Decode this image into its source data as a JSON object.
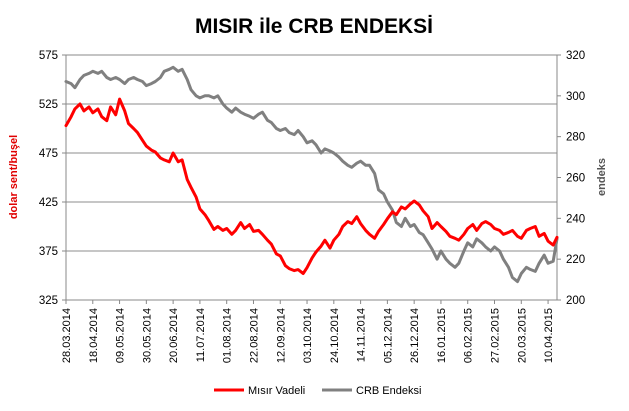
{
  "chart_data": {
    "type": "line",
    "title": "MISIR ile CRB ENDEKSİ",
    "ylabel_left": "dolar sent/buşel",
    "ylabel_right": "endeks",
    "ylim_left": [
      325,
      575
    ],
    "yticks_left": [
      "325",
      "375",
      "425",
      "475",
      "525",
      "575"
    ],
    "ylim_right": [
      200,
      320
    ],
    "yticks_right": [
      "200",
      "220",
      "240",
      "260",
      "280",
      "300",
      "320"
    ],
    "x_range": [
      "2014-03-28",
      "2015-04-17"
    ],
    "x_ticks": [
      "28.03.2014",
      "18.04.2014",
      "09.05.2014",
      "30.05.2014",
      "20.06.2014",
      "11.07.2014",
      "01.08.2014",
      "22.08.2014",
      "12.09.2014",
      "03.10.2014",
      "24.10.2014",
      "14.11.2014",
      "05.12.2014",
      "26.12.2014",
      "16.01.2015",
      "06.02.2015",
      "27.02.2015",
      "20.03.2015",
      "10.04.2015"
    ],
    "grid": "horizontal",
    "legend_position": "bottom",
    "series": [
      {
        "name": "Mısır Vadeli",
        "axis": "left",
        "color": "#ff0000",
        "points": [
          [
            "2014-03-28",
            503
          ],
          [
            "2014-04-01",
            512
          ],
          [
            "2014-04-04",
            520
          ],
          [
            "2014-04-08",
            525
          ],
          [
            "2014-04-11",
            518
          ],
          [
            "2014-04-15",
            522
          ],
          [
            "2014-04-18",
            516
          ],
          [
            "2014-04-22",
            520
          ],
          [
            "2014-04-25",
            512
          ],
          [
            "2014-04-29",
            508
          ],
          [
            "2014-05-02",
            522
          ],
          [
            "2014-05-06",
            514
          ],
          [
            "2014-05-09",
            530
          ],
          [
            "2014-05-13",
            518
          ],
          [
            "2014-05-16",
            505
          ],
          [
            "2014-05-20",
            500
          ],
          [
            "2014-05-23",
            496
          ],
          [
            "2014-05-27",
            488
          ],
          [
            "2014-05-30",
            482
          ],
          [
            "2014-06-03",
            478
          ],
          [
            "2014-06-06",
            476
          ],
          [
            "2014-06-10",
            470
          ],
          [
            "2014-06-13",
            468
          ],
          [
            "2014-06-17",
            466
          ],
          [
            "2014-06-20",
            475
          ],
          [
            "2014-06-24",
            466
          ],
          [
            "2014-06-27",
            468
          ],
          [
            "2014-07-01",
            448
          ],
          [
            "2014-07-04",
            440
          ],
          [
            "2014-07-08",
            430
          ],
          [
            "2014-07-11",
            418
          ],
          [
            "2014-07-15",
            412
          ],
          [
            "2014-07-18",
            406
          ],
          [
            "2014-07-22",
            397
          ],
          [
            "2014-07-25",
            400
          ],
          [
            "2014-07-29",
            396
          ],
          [
            "2014-08-01",
            398
          ],
          [
            "2014-08-05",
            392
          ],
          [
            "2014-08-08",
            396
          ],
          [
            "2014-08-12",
            404
          ],
          [
            "2014-08-15",
            398
          ],
          [
            "2014-08-19",
            402
          ],
          [
            "2014-08-22",
            395
          ],
          [
            "2014-08-26",
            396
          ],
          [
            "2014-08-29",
            392
          ],
          [
            "2014-09-02",
            386
          ],
          [
            "2014-09-05",
            382
          ],
          [
            "2014-09-09",
            372
          ],
          [
            "2014-09-12",
            370
          ],
          [
            "2014-09-16",
            360
          ],
          [
            "2014-09-19",
            357
          ],
          [
            "2014-09-23",
            355
          ],
          [
            "2014-09-26",
            356
          ],
          [
            "2014-09-30",
            352
          ],
          [
            "2014-10-03",
            358
          ],
          [
            "2014-10-07",
            368
          ],
          [
            "2014-10-10",
            374
          ],
          [
            "2014-10-14",
            380
          ],
          [
            "2014-10-17",
            386
          ],
          [
            "2014-10-21",
            378
          ],
          [
            "2014-10-24",
            386
          ],
          [
            "2014-10-28",
            392
          ],
          [
            "2014-10-31",
            400
          ],
          [
            "2014-11-04",
            405
          ],
          [
            "2014-11-07",
            403
          ],
          [
            "2014-11-11",
            410
          ],
          [
            "2014-11-14",
            403
          ],
          [
            "2014-11-18",
            396
          ],
          [
            "2014-11-21",
            392
          ],
          [
            "2014-11-25",
            388
          ],
          [
            "2014-11-28",
            395
          ],
          [
            "2014-12-02",
            402
          ],
          [
            "2014-12-05",
            408
          ],
          [
            "2014-12-09",
            415
          ],
          [
            "2014-12-12",
            412
          ],
          [
            "2014-12-16",
            420
          ],
          [
            "2014-12-19",
            418
          ],
          [
            "2014-12-23",
            423
          ],
          [
            "2014-12-26",
            426
          ],
          [
            "2014-12-30",
            422
          ],
          [
            "2015-01-02",
            416
          ],
          [
            "2015-01-06",
            410
          ],
          [
            "2015-01-09",
            398
          ],
          [
            "2015-01-13",
            404
          ],
          [
            "2015-01-16",
            400
          ],
          [
            "2015-01-20",
            395
          ],
          [
            "2015-01-23",
            390
          ],
          [
            "2015-01-27",
            388
          ],
          [
            "2015-01-30",
            386
          ],
          [
            "2015-02-03",
            392
          ],
          [
            "2015-02-06",
            398
          ],
          [
            "2015-02-10",
            402
          ],
          [
            "2015-02-13",
            396
          ],
          [
            "2015-02-17",
            403
          ],
          [
            "2015-02-20",
            405
          ],
          [
            "2015-02-24",
            402
          ],
          [
            "2015-02-27",
            398
          ],
          [
            "2015-03-03",
            396
          ],
          [
            "2015-03-06",
            392
          ],
          [
            "2015-03-10",
            394
          ],
          [
            "2015-03-13",
            396
          ],
          [
            "2015-03-17",
            390
          ],
          [
            "2015-03-20",
            388
          ],
          [
            "2015-03-24",
            396
          ],
          [
            "2015-03-27",
            398
          ],
          [
            "2015-03-31",
            400
          ],
          [
            "2015-04-03",
            390
          ],
          [
            "2015-04-07",
            393
          ],
          [
            "2015-04-10",
            385
          ],
          [
            "2015-04-14",
            381
          ],
          [
            "2015-04-17",
            389
          ]
        ]
      },
      {
        "name": "CRB Endeksi",
        "axis": "right",
        "color": "#808080",
        "points": [
          [
            "2014-03-28",
            307
          ],
          [
            "2014-04-01",
            306
          ],
          [
            "2014-04-04",
            304
          ],
          [
            "2014-04-08",
            308
          ],
          [
            "2014-04-11",
            310
          ],
          [
            "2014-04-15",
            311
          ],
          [
            "2014-04-18",
            312
          ],
          [
            "2014-04-22",
            311
          ],
          [
            "2014-04-25",
            312
          ],
          [
            "2014-04-29",
            309
          ],
          [
            "2014-05-02",
            308
          ],
          [
            "2014-05-06",
            309
          ],
          [
            "2014-05-09",
            308
          ],
          [
            "2014-05-13",
            306
          ],
          [
            "2014-05-16",
            308
          ],
          [
            "2014-05-20",
            309
          ],
          [
            "2014-05-23",
            308
          ],
          [
            "2014-05-27",
            307
          ],
          [
            "2014-05-30",
            305
          ],
          [
            "2014-06-03",
            306
          ],
          [
            "2014-06-06",
            307
          ],
          [
            "2014-06-10",
            309
          ],
          [
            "2014-06-13",
            312
          ],
          [
            "2014-06-17",
            313
          ],
          [
            "2014-06-20",
            314
          ],
          [
            "2014-06-24",
            312
          ],
          [
            "2014-06-27",
            313
          ],
          [
            "2014-07-01",
            308
          ],
          [
            "2014-07-04",
            303
          ],
          [
            "2014-07-08",
            300
          ],
          [
            "2014-07-11",
            299
          ],
          [
            "2014-07-15",
            300
          ],
          [
            "2014-07-18",
            300
          ],
          [
            "2014-07-22",
            299
          ],
          [
            "2014-07-25",
            300
          ],
          [
            "2014-07-29",
            296
          ],
          [
            "2014-08-01",
            294
          ],
          [
            "2014-08-05",
            292
          ],
          [
            "2014-08-08",
            294
          ],
          [
            "2014-08-12",
            292
          ],
          [
            "2014-08-15",
            291
          ],
          [
            "2014-08-19",
            290
          ],
          [
            "2014-08-22",
            289
          ],
          [
            "2014-08-26",
            291
          ],
          [
            "2014-08-29",
            292
          ],
          [
            "2014-09-02",
            288
          ],
          [
            "2014-09-05",
            287
          ],
          [
            "2014-09-09",
            284
          ],
          [
            "2014-09-12",
            283
          ],
          [
            "2014-09-16",
            284
          ],
          [
            "2014-09-19",
            282
          ],
          [
            "2014-09-23",
            281
          ],
          [
            "2014-09-26",
            283
          ],
          [
            "2014-09-30",
            280
          ],
          [
            "2014-10-03",
            277
          ],
          [
            "2014-10-07",
            278
          ],
          [
            "2014-10-10",
            276
          ],
          [
            "2014-10-14",
            272
          ],
          [
            "2014-10-17",
            274
          ],
          [
            "2014-10-21",
            273
          ],
          [
            "2014-10-24",
            272
          ],
          [
            "2014-10-28",
            270
          ],
          [
            "2014-10-31",
            268
          ],
          [
            "2014-11-04",
            266
          ],
          [
            "2014-11-07",
            265
          ],
          [
            "2014-11-11",
            267
          ],
          [
            "2014-11-14",
            268
          ],
          [
            "2014-11-18",
            266
          ],
          [
            "2014-11-21",
            266
          ],
          [
            "2014-11-25",
            262
          ],
          [
            "2014-11-28",
            254
          ],
          [
            "2014-12-02",
            252
          ],
          [
            "2014-12-05",
            248
          ],
          [
            "2014-12-09",
            244
          ],
          [
            "2014-12-12",
            238
          ],
          [
            "2014-12-16",
            236
          ],
          [
            "2014-12-19",
            240
          ],
          [
            "2014-12-23",
            236
          ],
          [
            "2014-12-26",
            237
          ],
          [
            "2014-12-30",
            233
          ],
          [
            "2015-01-02",
            232
          ],
          [
            "2015-01-06",
            228
          ],
          [
            "2015-01-09",
            225
          ],
          [
            "2015-01-13",
            220
          ],
          [
            "2015-01-16",
            224
          ],
          [
            "2015-01-20",
            220
          ],
          [
            "2015-01-23",
            218
          ],
          [
            "2015-01-27",
            216
          ],
          [
            "2015-01-30",
            218
          ],
          [
            "2015-02-03",
            224
          ],
          [
            "2015-02-06",
            228
          ],
          [
            "2015-02-10",
            226
          ],
          [
            "2015-02-13",
            230
          ],
          [
            "2015-02-17",
            228
          ],
          [
            "2015-02-20",
            226
          ],
          [
            "2015-02-24",
            224
          ],
          [
            "2015-02-27",
            226
          ],
          [
            "2015-03-03",
            224
          ],
          [
            "2015-03-06",
            220
          ],
          [
            "2015-03-10",
            216
          ],
          [
            "2015-03-13",
            211
          ],
          [
            "2015-03-17",
            209
          ],
          [
            "2015-03-20",
            213
          ],
          [
            "2015-03-24",
            216
          ],
          [
            "2015-03-27",
            215
          ],
          [
            "2015-03-31",
            214
          ],
          [
            "2015-04-03",
            218
          ],
          [
            "2015-04-07",
            222
          ],
          [
            "2015-04-10",
            218
          ],
          [
            "2015-04-14",
            219
          ],
          [
            "2015-04-17",
            230
          ]
        ]
      }
    ]
  }
}
